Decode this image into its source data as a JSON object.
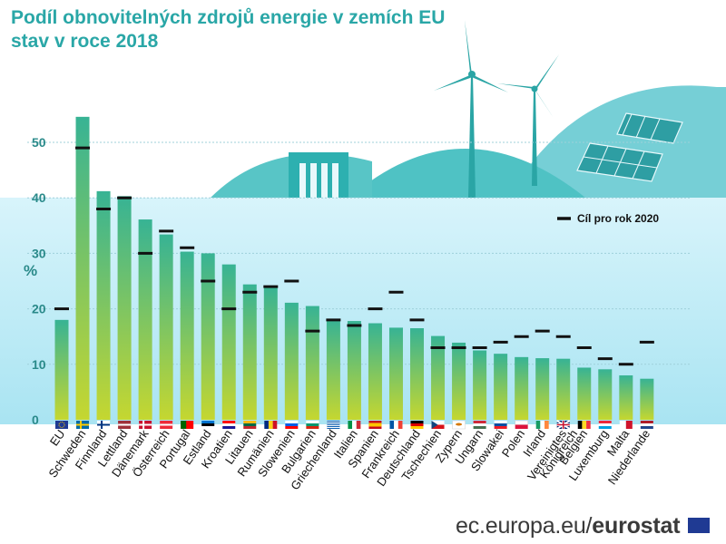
{
  "title": "Podíl obnovitelných zdrojů energie v zemích EU",
  "subtitle": "stav v roce 2018",
  "footer": {
    "site": "ec.europa.eu/",
    "brand": "eurostat"
  },
  "chart_data": {
    "type": "bar",
    "ylabel": "%",
    "ylim": [
      0,
      50
    ],
    "yticks": [
      "0",
      "10",
      "20",
      "30",
      "40",
      "50"
    ],
    "legend": {
      "target_label": "Cíl pro rok 2020",
      "position": "top-right"
    },
    "categories": [
      "EU",
      "Schweden",
      "Finnland",
      "Lettland",
      "Dänemark",
      "Österreich",
      "Portugal",
      "Estland",
      "Kroatien",
      "Litauen",
      "Rumänien",
      "Slowenien",
      "Bulgarien",
      "Griechenland",
      "Italien",
      "Spanien",
      "Frankreich",
      "Deutschland",
      "Tschechien",
      "Zypern",
      "Ungarn",
      "Slowakei",
      "Polen",
      "Irland",
      "Vereinigtes Königreich",
      "Belgien",
      "Luxemburg",
      "Malta",
      "Niederlande"
    ],
    "category_lines": [
      [
        "EU"
      ],
      [
        "Schweden"
      ],
      [
        "Finnland"
      ],
      [
        "Lettland"
      ],
      [
        "Dänemark"
      ],
      [
        "Österreich"
      ],
      [
        "Portugal"
      ],
      [
        "Estland"
      ],
      [
        "Kroatien"
      ],
      [
        "Litauen"
      ],
      [
        "Rumänien"
      ],
      [
        "Slowenien"
      ],
      [
        "Bulgarien"
      ],
      [
        "Griechenland"
      ],
      [
        "Italien"
      ],
      [
        "Spanien"
      ],
      [
        "Frankreich"
      ],
      [
        "Deutschland"
      ],
      [
        "Tschechien"
      ],
      [
        "Zypern"
      ],
      [
        "Ungarn"
      ],
      [
        "Slowakei"
      ],
      [
        "Polen"
      ],
      [
        "Irland"
      ],
      [
        "Vereinigtes",
        "Königreich"
      ],
      [
        "Belgien"
      ],
      [
        "Luxemburg"
      ],
      [
        "Malta"
      ],
      [
        "Niederlande"
      ]
    ],
    "series": [
      {
        "name": "",
        "values": [
          18.0,
          54.6,
          41.2,
          40.3,
          36.1,
          33.4,
          30.3,
          30.0,
          28.0,
          24.4,
          23.9,
          21.1,
          20.5,
          18.0,
          17.8,
          17.4,
          16.6,
          16.5,
          15.1,
          13.9,
          12.5,
          11.9,
          11.3,
          11.1,
          11.0,
          9.4,
          9.1,
          8.0,
          7.4
        ]
      },
      {
        "name": "Cíl pro rok 2020",
        "values": [
          20,
          49,
          38,
          40,
          30,
          34,
          31,
          25,
          20,
          23,
          24,
          25,
          16,
          18,
          17,
          20,
          23,
          18,
          13,
          13,
          13,
          14,
          15,
          16,
          15,
          13,
          11,
          10,
          14
        ]
      }
    ],
    "grid": true,
    "colors": {
      "bar_top": "#37b394",
      "bar_bottom": "#c5d730",
      "target": "#111111",
      "plot_bg": "#c2ecf6",
      "axis_text": "#2a8a8a"
    },
    "flags": [
      "eu",
      "se",
      "fi",
      "lv",
      "dk",
      "at",
      "pt",
      "ee",
      "hr",
      "lt",
      "ro",
      "si",
      "bg",
      "gr",
      "it",
      "es",
      "fr",
      "de",
      "cz",
      "cy",
      "hu",
      "sk",
      "pl",
      "ie",
      "uk",
      "be",
      "lu",
      "mt",
      "nl"
    ]
  }
}
